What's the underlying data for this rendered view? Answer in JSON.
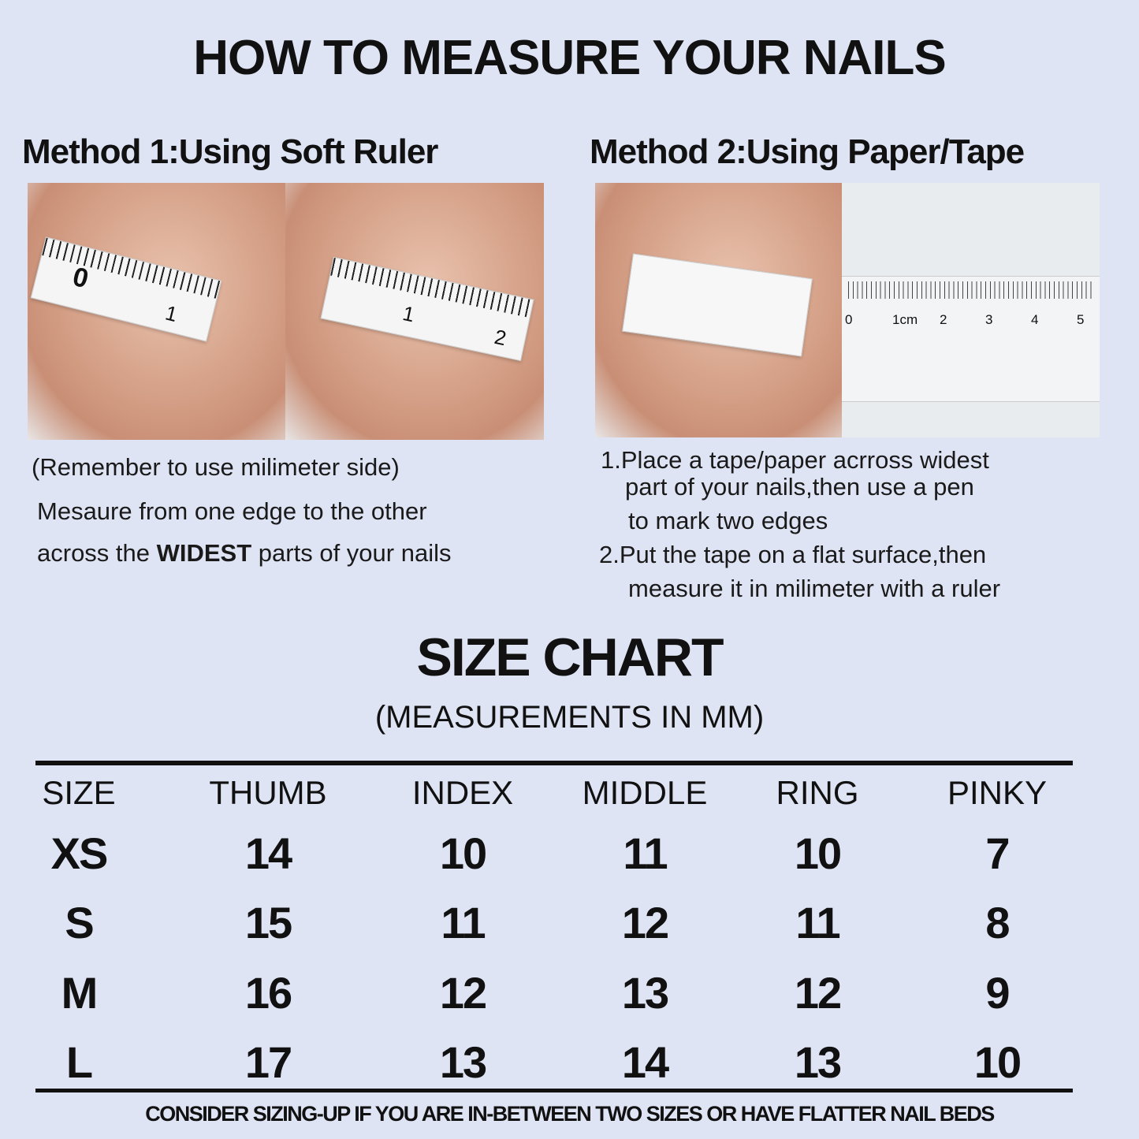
{
  "title": "HOW TO MEASURE YOUR NAILS",
  "method1": {
    "heading": "Method 1:Using Soft Ruler",
    "note": "(Remember to use milimeter side)",
    "line1": "Mesaure from one edge to the other",
    "line2_pre": "across the ",
    "line2_bold": "WIDEST",
    "line2_post": " parts of your nails",
    "tape_labels": [
      "0",
      "1",
      "1",
      "2"
    ]
  },
  "method2": {
    "heading": "Method 2:Using Paper/Tape",
    "step1": [
      "1.Place a tape/paper acrross widest",
      "part of your nails,then use a pen",
      "to mark two edges"
    ],
    "step2": [
      "2.Put the tape on a flat surface,then",
      "measure it in milimeter with a ruler"
    ],
    "ruler_labels": [
      "0",
      "1cm",
      "2",
      "3",
      "4",
      "5"
    ]
  },
  "size_chart": {
    "title": "SIZE CHART",
    "subtitle": "(MEASUREMENTS IN MM)",
    "headers": [
      "SIZE",
      "THUMB",
      "INDEX",
      "MIDDLE",
      "RING",
      "PINKY"
    ],
    "rows": [
      [
        "XS",
        "14",
        "10",
        "11",
        "10",
        "7"
      ],
      [
        "S",
        "15",
        "11",
        "12",
        "11",
        "8"
      ],
      [
        "M",
        "16",
        "12",
        "13",
        "12",
        "9"
      ],
      [
        "L",
        "17",
        "13",
        "14",
        "13",
        "10"
      ]
    ],
    "footer": "CONSIDER SIZING-UP IF YOU ARE IN-BETWEEN TWO SIZES OR HAVE FLATTER NAIL BEDS"
  },
  "colors": {
    "background": "#dfe4f4",
    "text": "#111111"
  }
}
